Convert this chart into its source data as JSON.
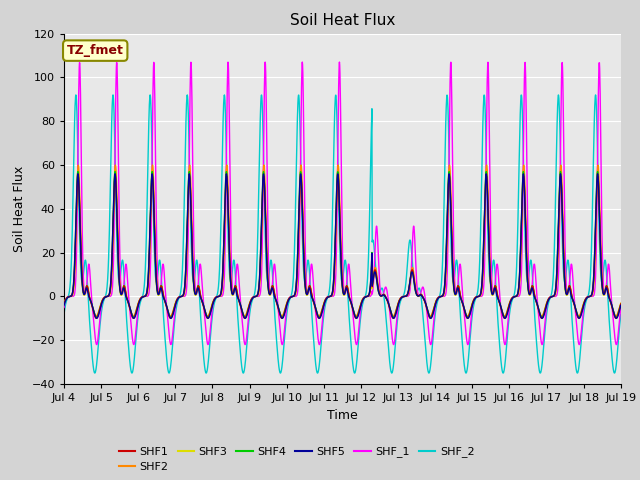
{
  "title": "Soil Heat Flux",
  "ylabel": "Soil Heat Flux",
  "xlabel": "Time",
  "ylim": [
    -40,
    120
  ],
  "x_tick_labels": [
    "Jul 4",
    "Jul 5",
    "Jul 6",
    "Jul 7",
    "Jul 8",
    "Jul 9",
    "Jul 10",
    "Jul 11",
    "Jul 12",
    "Jul 13",
    "Jul 14",
    "Jul 15",
    "Jul 16",
    "Jul 17",
    "Jul 18",
    "Jul 19"
  ],
  "series_colors": {
    "SHF1": "#cc0000",
    "SHF2": "#ff8800",
    "SHF3": "#dddd00",
    "SHF4": "#00cc00",
    "SHF5": "#000099",
    "SHF_1": "#ff00ff",
    "SHF_2": "#00cccc"
  },
  "annotation_text": "TZ_fmet",
  "annotation_bg": "#ffffcc",
  "annotation_border": "#888800",
  "annotation_text_color": "#880000",
  "plot_bg_color": "#e8e8e8",
  "fig_bg_color": "#d4d4d4",
  "grid_color": "#ffffff",
  "title_fontsize": 11,
  "axis_label_fontsize": 9,
  "tick_fontsize": 8,
  "legend_fontsize": 8,
  "linewidth": 1.0
}
